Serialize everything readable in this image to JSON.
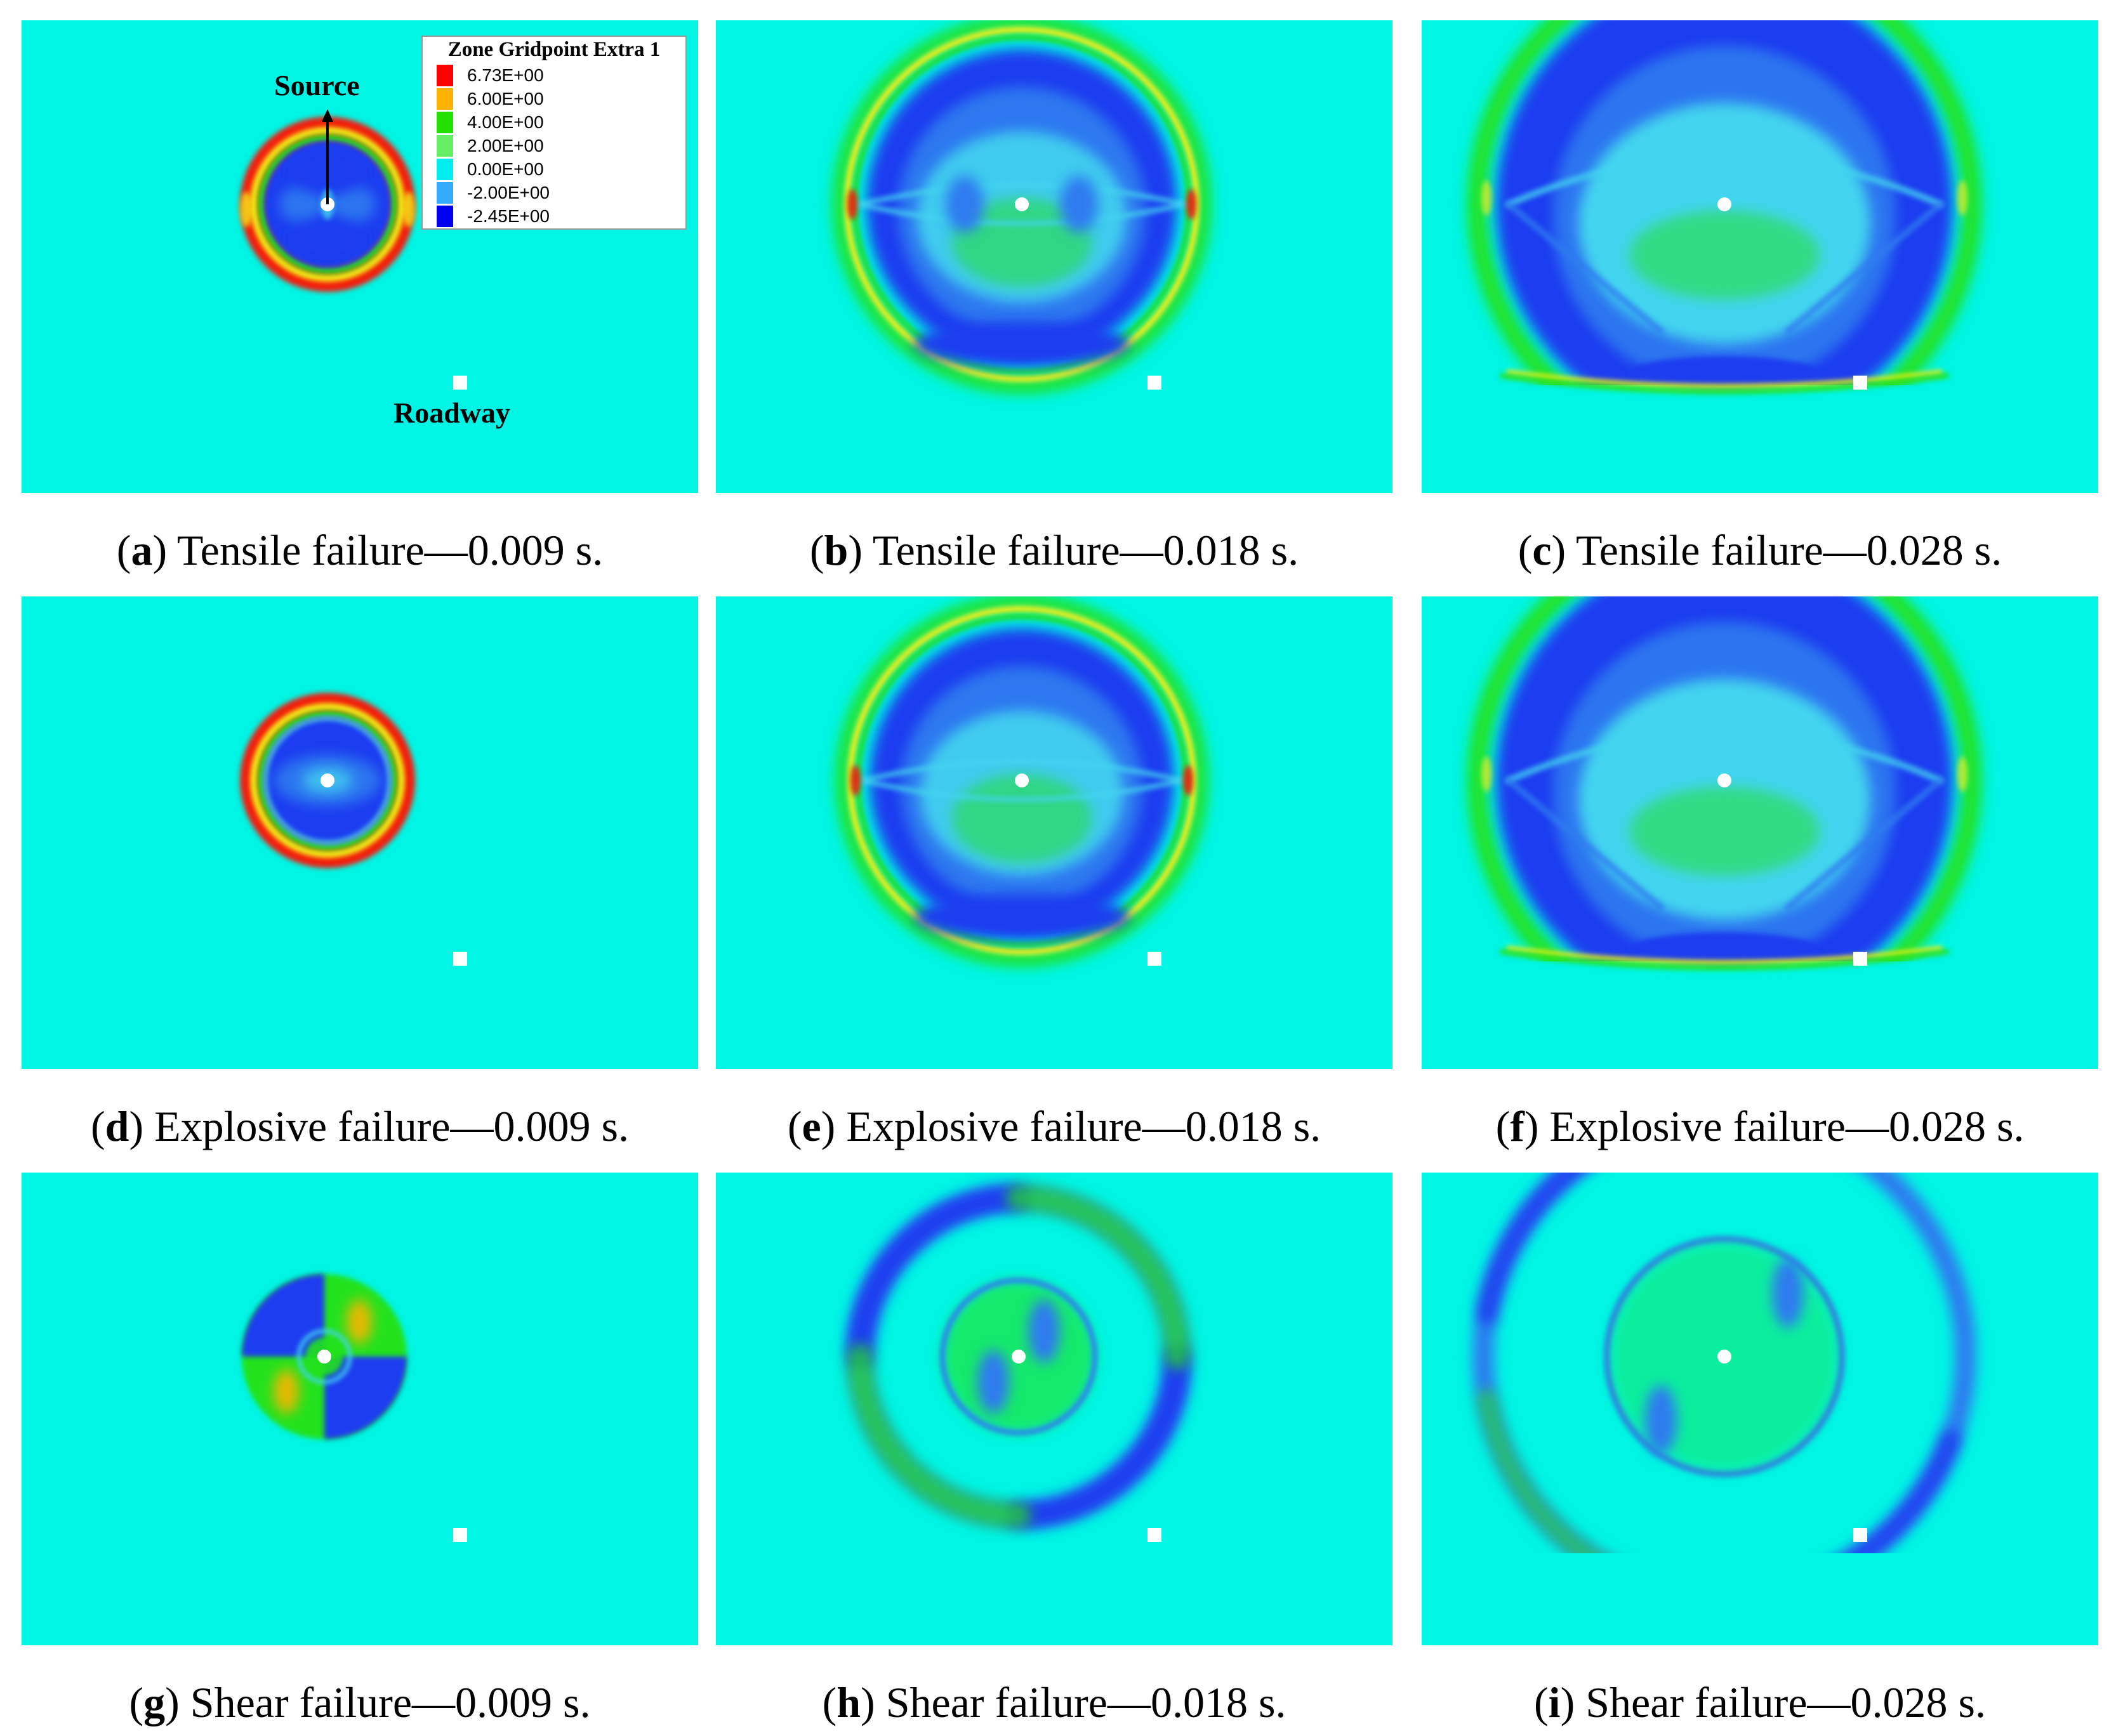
{
  "colors": {
    "background": "#00f5e4",
    "blue": "#1a3cf0",
    "mid_blue": "#2f7cf0",
    "light_blue": "#43d4ef",
    "green": "#22e21b",
    "yellow": "#f4ec14",
    "orange": "#ffb300",
    "red": "#f21a10",
    "marker": "#ffffff"
  },
  "legend": {
    "title": "Zone Gridpoint Extra 1",
    "entries": [
      {
        "label": "6.73E+00",
        "color": "#ff0000"
      },
      {
        "label": "6.00E+00",
        "color": "#ffb300"
      },
      {
        "label": "4.00E+00",
        "color": "#22e000"
      },
      {
        "label": "2.00E+00",
        "color": "#66ee66"
      },
      {
        "label": "0.00E+00",
        "color": "#00eeee"
      },
      {
        "label": "-2.00E+00",
        "color": "#33aaff"
      },
      {
        "label": "-2.45E+00",
        "color": "#0000ee"
      }
    ]
  },
  "annotations": {
    "source": "Source",
    "roadway": "Roadway"
  },
  "panels": [
    {
      "id": "a",
      "letter": "a",
      "text": "Tensile failure—0.009 s.",
      "mode": "tensile",
      "stage": 1
    },
    {
      "id": "b",
      "letter": "b",
      "text": "Tensile failure—0.018 s.",
      "mode": "tensile",
      "stage": 2
    },
    {
      "id": "c",
      "letter": "c",
      "text": "Tensile failure—0.028 s.",
      "mode": "tensile",
      "stage": 3
    },
    {
      "id": "d",
      "letter": "d",
      "text": "Explosive failure—0.009 s.",
      "mode": "explosive",
      "stage": 1
    },
    {
      "id": "e",
      "letter": "e",
      "text": "Explosive failure—0.018 s.",
      "mode": "explosive",
      "stage": 2
    },
    {
      "id": "f",
      "letter": "f",
      "text": "Explosive failure—0.028 s.",
      "mode": "explosive",
      "stage": 3
    },
    {
      "id": "g",
      "letter": "g",
      "text": "Shear failure—0.009 s.",
      "mode": "shear",
      "stage": 1
    },
    {
      "id": "h",
      "letter": "h",
      "text": "Shear failure—0.018 s.",
      "mode": "shear",
      "stage": 2
    },
    {
      "id": "i",
      "letter": "i",
      "text": "Shear failure—0.028 s.",
      "mode": "shear",
      "stage": 3
    }
  ]
}
